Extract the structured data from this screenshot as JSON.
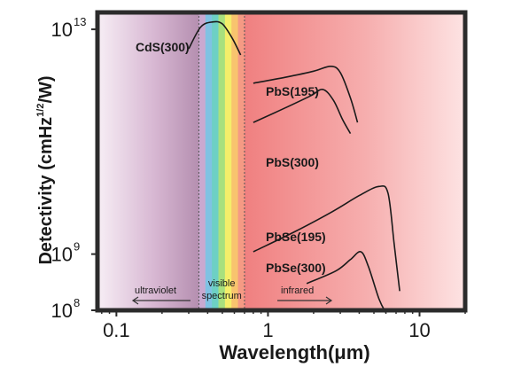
{
  "chart_data": {
    "type": "line",
    "title": "",
    "xlabel": "Wavelength(μm)",
    "ylabel": "Detectivity (cmHz",
    "ylabel_sup": "1/2",
    "ylabel_end": "/W)",
    "x_scale": "log",
    "y_scale": "log",
    "xlim": [
      0.075,
      20
    ],
    "ylim": [
      100000000.0,
      20000000000000.0
    ],
    "x_ticks": [
      {
        "value": 0.1,
        "label": "0.1"
      },
      {
        "value": 1,
        "label": "1"
      },
      {
        "value": 10,
        "label": "10"
      }
    ],
    "y_ticks": [
      {
        "value": 100000000.0,
        "base": "10",
        "exp": "8"
      },
      {
        "value": 1000000000.0,
        "base": "10",
        "exp": "9"
      },
      {
        "value": 10000000000000.0,
        "base": "10",
        "exp": "13"
      }
    ],
    "grid": false,
    "regions": [
      {
        "name": "ultraviolet",
        "label": "ultraviolet",
        "x": [
          0.075,
          0.35
        ]
      },
      {
        "name": "visible",
        "label_line1": "visible",
        "label_line2": "spectrum",
        "x": [
          0.35,
          0.7
        ]
      },
      {
        "name": "infrared",
        "label": "infrared",
        "x": [
          0.7,
          20
        ]
      }
    ],
    "series": [
      {
        "name": "CdS(300)",
        "label": "CdS(300)",
        "points": [
          [
            0.3,
            4500000000000.0
          ],
          [
            0.36,
            11000000000000.0
          ],
          [
            0.43,
            13500000000000.0
          ],
          [
            0.5,
            12500000000000.0
          ],
          [
            0.58,
            7000000000000.0
          ],
          [
            0.66,
            3500000000000.0
          ]
        ]
      },
      {
        "name": "PbS(195)",
        "label": "PbS(195)",
        "points": [
          [
            0.8,
            1100000000000.0
          ],
          [
            1.3,
            1400000000000.0
          ],
          [
            2.0,
            1800000000000.0
          ],
          [
            2.6,
            2200000000000.0
          ],
          [
            3.0,
            1700000000000.0
          ],
          [
            3.5,
            600000000000.0
          ],
          [
            3.9,
            220000000000.0
          ]
        ]
      },
      {
        "name": "PbS(300)",
        "label": "PbS(300)",
        "points": [
          [
            0.8,
            220000000000.0
          ],
          [
            1.3,
            400000000000.0
          ],
          [
            1.9,
            650000000000.0
          ],
          [
            2.3,
            850000000000.0
          ],
          [
            2.7,
            550000000000.0
          ],
          [
            3.1,
            250000000000.0
          ],
          [
            3.5,
            140000000000.0
          ]
        ]
      },
      {
        "name": "PbSe(195)",
        "label": "PbSe(195)",
        "points": [
          [
            0.8,
            1100000000.0
          ],
          [
            1.5,
            2500000000.0
          ],
          [
            2.6,
            5500000000.0
          ],
          [
            4.0,
            11000000000.0
          ],
          [
            5.4,
            16000000000.0
          ],
          [
            6.2,
            12000000000.0
          ],
          [
            6.8,
            1500000000.0
          ],
          [
            7.4,
            220000000.0
          ]
        ]
      },
      {
        "name": "PbSe(300)",
        "label": "PbSe(300)",
        "points": [
          [
            1.8,
            300000000.0
          ],
          [
            2.8,
            500000000.0
          ],
          [
            3.5,
            800000000.0
          ],
          [
            4.1,
            1100000000.0
          ],
          [
            4.6,
            600000000.0
          ],
          [
            5.4,
            160000000.0
          ],
          [
            6.0,
            90000000.0
          ]
        ]
      }
    ]
  }
}
